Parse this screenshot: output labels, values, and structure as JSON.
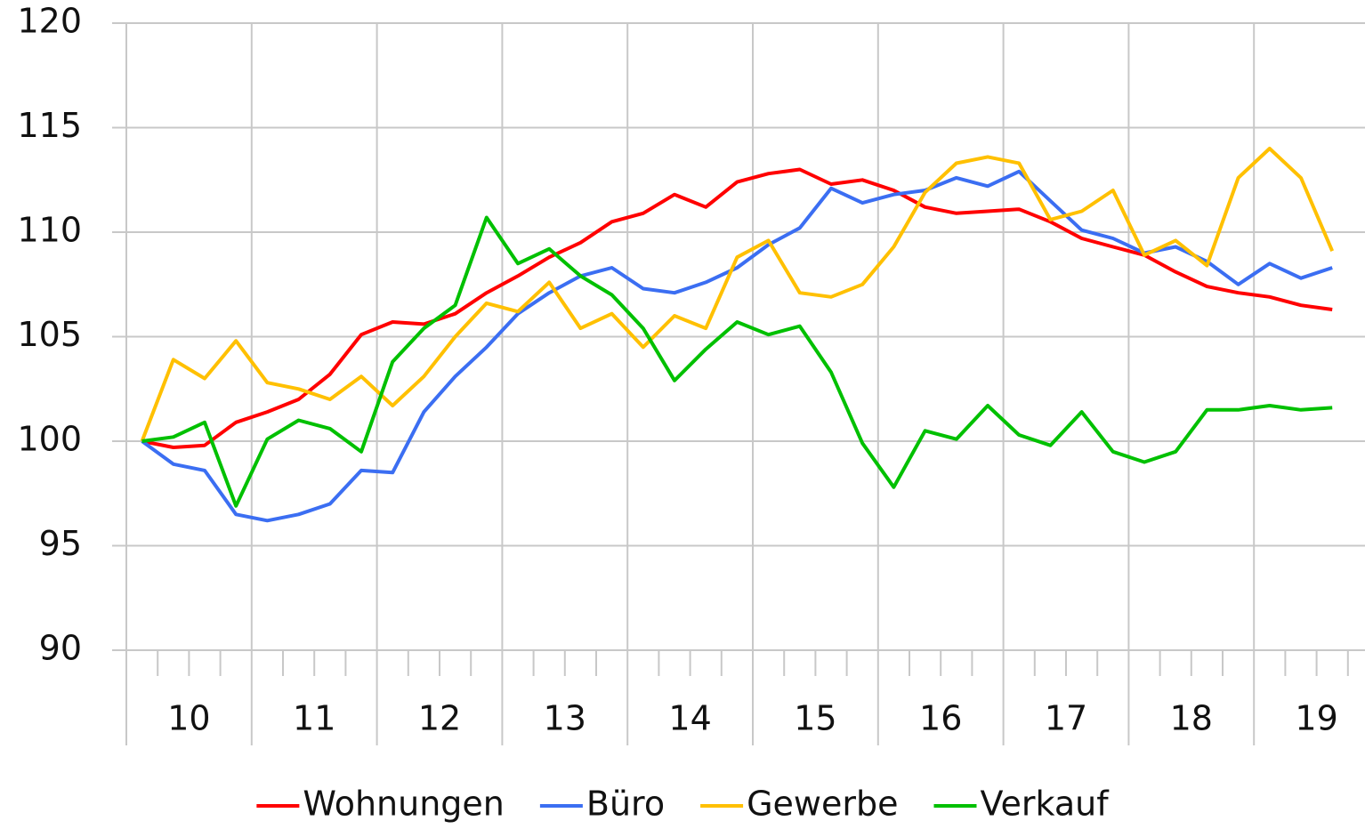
{
  "chart_data": {
    "type": "line",
    "categories": [
      null,
      null,
      null,
      null,
      null,
      null,
      null,
      null,
      null,
      null,
      null,
      null,
      null,
      null,
      null,
      null,
      null,
      null,
      null,
      null,
      null,
      null,
      null,
      null,
      null,
      null,
      null,
      null,
      null,
      null,
      null,
      null,
      null,
      null,
      null,
      null,
      null,
      null,
      null
    ],
    "x_groups": [
      "10",
      "11",
      "12",
      "13",
      "14",
      "15",
      "16",
      "17",
      "18",
      "19"
    ],
    "series": [
      {
        "name": "Wohnungen",
        "color": "#ff0000",
        "values": [
          100,
          99.7,
          99.8,
          100.9,
          101.4,
          102.0,
          103.2,
          105.1,
          105.7,
          105.6,
          106.1,
          107.1,
          107.9,
          108.8,
          109.5,
          110.5,
          110.9,
          111.8,
          111.2,
          112.4,
          112.8,
          113.0,
          112.3,
          112.5,
          112.0,
          111.2,
          110.9,
          111.0,
          111.1,
          110.5,
          109.7,
          109.3,
          108.9,
          108.1,
          107.4,
          107.1,
          106.9,
          106.5,
          106.3
        ]
      },
      {
        "name": "Büro",
        "color": "#3b6ef2",
        "values": [
          100,
          98.9,
          98.6,
          96.5,
          96.2,
          96.5,
          97.0,
          98.6,
          98.5,
          101.4,
          103.1,
          104.5,
          106.1,
          107.1,
          107.9,
          108.3,
          107.3,
          107.1,
          107.6,
          108.3,
          109.4,
          110.2,
          112.1,
          111.4,
          111.8,
          112.0,
          112.6,
          112.2,
          112.9,
          111.5,
          110.1,
          109.7,
          109.0,
          109.3,
          108.6,
          107.5,
          108.5,
          107.8,
          108.3
        ]
      },
      {
        "name": "Gewerbe",
        "color": "#ffc000",
        "values": [
          100,
          103.9,
          103.0,
          104.8,
          102.8,
          102.5,
          102.0,
          103.1,
          101.7,
          103.1,
          105.0,
          106.6,
          106.2,
          107.6,
          105.4,
          106.1,
          104.5,
          106.0,
          105.4,
          108.8,
          109.6,
          107.1,
          106.9,
          107.5,
          109.3,
          111.9,
          113.3,
          113.6,
          113.3,
          110.6,
          111.0,
          112.0,
          108.9,
          109.6,
          108.4,
          112.6,
          114.0,
          112.6,
          109.1
        ]
      },
      {
        "name": "Verkauf",
        "color": "#00c000",
        "values": [
          100,
          100.2,
          100.9,
          96.9,
          100.1,
          101.0,
          100.6,
          99.5,
          103.8,
          105.4,
          106.5,
          110.7,
          108.5,
          109.2,
          107.9,
          107.0,
          105.4,
          102.9,
          104.4,
          105.7,
          105.1,
          105.5,
          103.3,
          99.9,
          97.8,
          100.5,
          100.1,
          101.7,
          100.3,
          99.8,
          101.4,
          99.5,
          99.0,
          99.5,
          101.5,
          101.5,
          101.7,
          101.5,
          101.6
        ]
      }
    ],
    "ylim": [
      90,
      120
    ],
    "yticks": [
      90,
      95,
      100,
      105,
      110,
      115,
      120
    ],
    "grid": true,
    "legend": "bottom"
  }
}
